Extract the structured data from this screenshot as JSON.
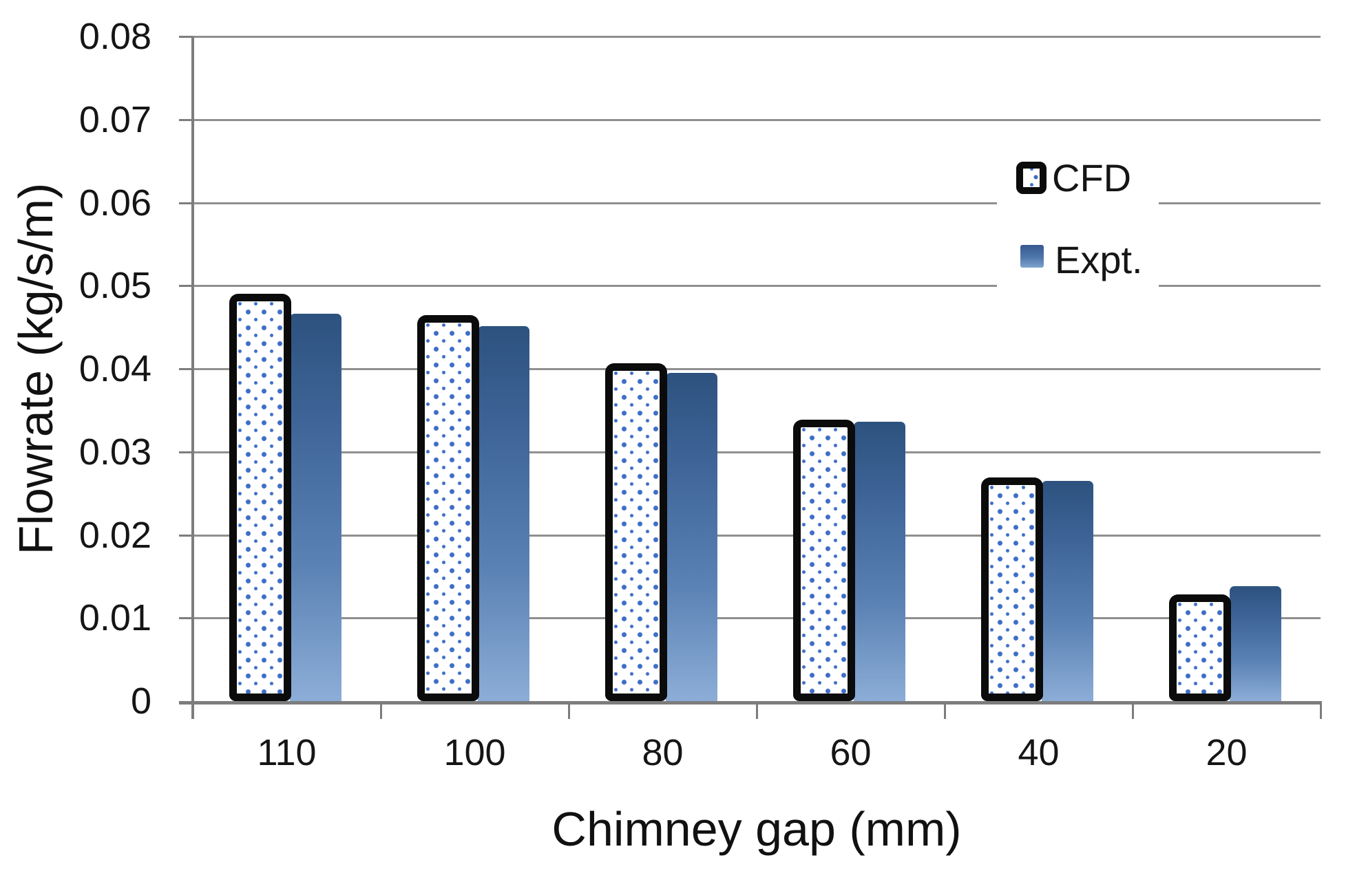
{
  "chart_data": {
    "type": "bar",
    "title": "",
    "xlabel": "Chimney gap (mm)",
    "ylabel": "Flowrate (kg/s/m)",
    "categories": [
      "110",
      "100",
      "80",
      "60",
      "40",
      "20"
    ],
    "series": [
      {
        "name": "CFD",
        "style": "white-dotted-black-outline",
        "dot_color": "#3d6ec6",
        "outline_color": "#0b0b0b",
        "values": [
          0.049,
          0.0465,
          0.0407,
          0.0339,
          0.0269,
          0.0128
        ]
      },
      {
        "name": "Expt.",
        "style": "blue-gradient",
        "gradient_top": "#2d527f",
        "gradient_bottom": "#8cadd7",
        "values": [
          0.0466,
          0.0451,
          0.0395,
          0.0336,
          0.0265,
          0.0138
        ]
      }
    ],
    "ylim": [
      0,
      0.08
    ],
    "ytick_step": 0.01,
    "yticks": [
      "0",
      "0.01",
      "0.02",
      "0.03",
      "0.04",
      "0.05",
      "0.06",
      "0.07",
      "0.08"
    ],
    "grid": "horizontal",
    "gridline_color": "#8f8f8f",
    "axis_color": "#7d7d7d",
    "legend_position": "inside-upper-right"
  }
}
